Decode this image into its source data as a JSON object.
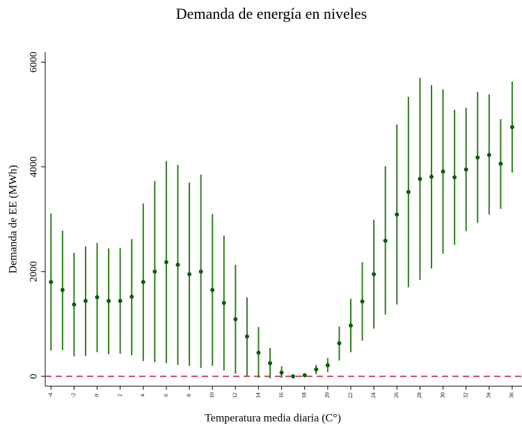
{
  "chart_data": {
    "type": "errorbar",
    "title": "Demanda de energía en niveles",
    "x_label": "Temperatura media diaria (C°)",
    "y_label": "Demanda de EE (MWh)",
    "x": [
      -4,
      -3,
      -2,
      -1,
      0,
      1,
      2,
      3,
      4,
      5,
      6,
      7,
      8,
      9,
      10,
      11,
      12,
      13,
      14,
      15,
      16,
      17,
      18,
      19,
      20,
      21,
      22,
      23,
      24,
      25,
      26,
      27,
      28,
      29,
      30,
      31,
      32,
      33,
      34,
      35,
      36
    ],
    "series": [
      {
        "color": "#0b5e0b",
        "bar_color": "#2f7d1f",
        "values": [
          1800,
          1650,
          1370,
          1440,
          1510,
          1440,
          1440,
          1520,
          1800,
          2000,
          2180,
          2130,
          1950,
          2000,
          1650,
          1400,
          1090,
          760,
          450,
          250,
          70,
          0,
          20,
          130,
          210,
          630,
          970,
          1430,
          1950,
          2590,
          3090,
          3520,
          3770,
          3810,
          3910,
          3800,
          3950,
          4180,
          4230,
          4060,
          4760
        ],
        "lower": [
          490,
          500,
          380,
          390,
          460,
          420,
          430,
          400,
          290,
          270,
          250,
          220,
          200,
          160,
          200,
          110,
          50,
          0,
          -30,
          -40,
          -30,
          -20,
          0,
          40,
          80,
          300,
          460,
          680,
          910,
          1180,
          1370,
          1700,
          1840,
          2060,
          2340,
          2510,
          2770,
          2930,
          3090,
          3200,
          3890
        ],
        "upper": [
          3110,
          2780,
          2360,
          2480,
          2550,
          2440,
          2450,
          2620,
          3300,
          3730,
          4110,
          4040,
          3700,
          3850,
          3100,
          2690,
          2130,
          1510,
          940,
          540,
          190,
          20,
          60,
          220,
          350,
          950,
          1480,
          2180,
          2990,
          4010,
          4810,
          5340,
          5700,
          5560,
          5480,
          5090,
          5130,
          5430,
          5390,
          4910,
          5630
        ]
      }
    ],
    "hline": {
      "value": 0,
      "color": "#d0405a"
    },
    "xlim": [
      -4.5,
      36.85
    ],
    "xticks": [
      -4,
      -2,
      0,
      2,
      4,
      6,
      8,
      10,
      12,
      14,
      16,
      18,
      20,
      22,
      24,
      26,
      28,
      30,
      32,
      34,
      36
    ],
    "ylim": [
      -190,
      6190
    ],
    "yticks": [
      0,
      2000,
      4000,
      6000
    ]
  }
}
